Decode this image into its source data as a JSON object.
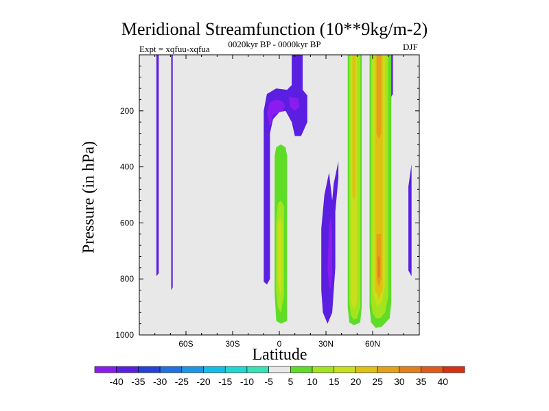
{
  "chart_data": {
    "type": "contour",
    "title": "Meridional Streamfunction (10**9kg/m-2)",
    "subtitle_left": "Expt = xqfuu-xqfua",
    "subtitle_center": "0020kyr BP - 0000kyr BP",
    "subtitle_right": "DJF",
    "xlabel": "Latitude",
    "ylabel": "Pressure (in hPa)",
    "xlim": [
      -90,
      90
    ],
    "ylim": [
      1000,
      0
    ],
    "x_ticks": [
      {
        "value": -60,
        "label": "60S"
      },
      {
        "value": -30,
        "label": "30S"
      },
      {
        "value": 0,
        "label": "0"
      },
      {
        "value": 30,
        "label": "30N"
      },
      {
        "value": 60,
        "label": "60N"
      }
    ],
    "y_ticks": [
      {
        "value": 200,
        "label": "200"
      },
      {
        "value": 400,
        "label": "400"
      },
      {
        "value": 600,
        "label": "600"
      },
      {
        "value": 800,
        "label": "800"
      },
      {
        "value": 1000,
        "label": "1000"
      }
    ],
    "background_color": "#e8e8e8",
    "colorbar": {
      "levels": [
        -40,
        -35,
        -30,
        -25,
        -20,
        -15,
        -10,
        -5,
        5,
        10,
        15,
        20,
        25,
        30,
        35,
        40
      ],
      "colors": [
        "#8b1cf0",
        "#5a1fe0",
        "#2740d8",
        "#1f70e0",
        "#1d96e6",
        "#12bde6",
        "#1ed8d2",
        "#37e3b4",
        "#e8e8e8",
        "#5fdc28",
        "#a2e51e",
        "#c8df1c",
        "#dfc114",
        "#e3a018",
        "#e27f1c",
        "#e05a1a",
        "#d63012"
      ]
    },
    "regions": [
      {
        "bin": -7,
        "points": [
          [
            -79,
            0
          ],
          [
            -77.5,
            0
          ],
          [
            -77.5,
            780
          ],
          [
            -79,
            790
          ]
        ]
      },
      {
        "bin": -7,
        "points": [
          [
            -69.5,
            0
          ],
          [
            -68.5,
            0
          ],
          [
            -68.5,
            830
          ],
          [
            -69.5,
            840
          ]
        ]
      },
      {
        "bin": -7,
        "points": [
          [
            -10,
            320
          ],
          [
            -10,
            200
          ],
          [
            -8,
            140
          ],
          [
            -2,
            120
          ],
          [
            5,
            125
          ],
          [
            8,
            108
          ],
          [
            8,
            0
          ],
          [
            15,
            0
          ],
          [
            15,
            125
          ],
          [
            18,
            145
          ],
          [
            18,
            240
          ],
          [
            14,
            290
          ],
          [
            10,
            290
          ],
          [
            8,
            240
          ],
          [
            4,
            200
          ],
          [
            0,
            205
          ],
          [
            -4,
            230
          ],
          [
            -6,
            280
          ],
          [
            -6,
            800
          ],
          [
            -8,
            820
          ],
          [
            -10,
            810
          ]
        ]
      },
      {
        "bin": -8,
        "points": [
          [
            -8,
            205
          ],
          [
            -6,
            170
          ],
          [
            -2,
            160
          ],
          [
            2,
            165
          ],
          [
            4,
            185
          ],
          [
            2,
            200
          ],
          [
            -4,
            215
          ],
          [
            -6,
            260
          ]
        ]
      },
      {
        "bin": -8,
        "points": [
          [
            6,
            150
          ],
          [
            12,
            155
          ],
          [
            13,
            185
          ],
          [
            10,
            200
          ],
          [
            7,
            185
          ]
        ]
      },
      {
        "bin": -7,
        "points": [
          [
            27,
            840
          ],
          [
            27,
            620
          ],
          [
            29,
            500
          ],
          [
            32,
            420
          ],
          [
            34,
            520
          ],
          [
            35,
            460
          ],
          [
            38,
            380
          ],
          [
            38,
            440
          ],
          [
            36,
            560
          ],
          [
            36,
            760
          ],
          [
            34,
            920
          ],
          [
            31,
            960
          ],
          [
            28,
            920
          ]
        ]
      },
      {
        "bin": -8,
        "points": [
          [
            31,
            760
          ],
          [
            32,
            610
          ],
          [
            33,
            580
          ],
          [
            34,
            640
          ],
          [
            34,
            780
          ],
          [
            33,
            840
          ],
          [
            32,
            820
          ]
        ]
      },
      {
        "bin": -7,
        "points": [
          [
            83,
            770
          ],
          [
            83,
            470
          ],
          [
            85,
            390
          ],
          [
            85,
            790
          ]
        ]
      },
      {
        "bin": -7,
        "points": [
          [
            71,
            0
          ],
          [
            73,
            0
          ],
          [
            73,
            140
          ],
          [
            72,
            150
          ],
          [
            71,
            130
          ]
        ]
      },
      {
        "bin": -7,
        "points": [
          [
            51,
            0
          ],
          [
            53,
            0
          ],
          [
            53,
            40
          ],
          [
            51,
            40
          ]
        ]
      },
      {
        "bin": 1,
        "points": [
          [
            -3,
            850
          ],
          [
            -3,
            360
          ],
          [
            -2,
            330
          ],
          [
            1,
            320
          ],
          [
            4,
            330
          ],
          [
            5,
            360
          ],
          [
            5,
            850
          ],
          [
            5,
            950
          ],
          [
            1,
            960
          ],
          [
            -2,
            950
          ]
        ]
      },
      {
        "bin": 1,
        "points": [
          [
            44,
            0
          ],
          [
            53,
            0
          ],
          [
            53,
            900
          ],
          [
            52,
            955
          ],
          [
            48,
            965
          ],
          [
            45,
            955
          ],
          [
            44,
            900
          ]
        ]
      },
      {
        "bin": 1,
        "points": [
          [
            58,
            0
          ],
          [
            72,
            0
          ],
          [
            72,
            880
          ],
          [
            71,
            940
          ],
          [
            66,
            970
          ],
          [
            62,
            975
          ],
          [
            59,
            955
          ],
          [
            58,
            900
          ]
        ]
      },
      {
        "bin": 2,
        "points": [
          [
            -2,
            840
          ],
          [
            -2,
            600
          ],
          [
            -1,
            530
          ],
          [
            1,
            520
          ],
          [
            3,
            540
          ],
          [
            3,
            600
          ],
          [
            3,
            860
          ],
          [
            1,
            920
          ],
          [
            -1,
            900
          ]
        ]
      },
      {
        "bin": 2,
        "points": [
          [
            45,
            0
          ],
          [
            52,
            0
          ],
          [
            52,
            900
          ],
          [
            50,
            940
          ],
          [
            48,
            945
          ],
          [
            46,
            930
          ],
          [
            45,
            880
          ]
        ]
      },
      {
        "bin": 2,
        "points": [
          [
            59,
            0
          ],
          [
            70,
            0
          ],
          [
            70,
            860
          ],
          [
            68,
            920
          ],
          [
            65,
            940
          ],
          [
            62,
            940
          ],
          [
            60,
            920
          ],
          [
            59,
            880
          ]
        ]
      },
      {
        "bin": 3,
        "points": [
          [
            -1,
            810
          ],
          [
            -1,
            600
          ],
          [
            1,
            580
          ],
          [
            2,
            610
          ],
          [
            2,
            800
          ],
          [
            1,
            860
          ]
        ]
      },
      {
        "bin": 3,
        "points": [
          [
            46,
            0
          ],
          [
            50,
            0
          ],
          [
            50,
            880
          ],
          [
            48,
            910
          ],
          [
            46,
            880
          ]
        ]
      },
      {
        "bin": 3,
        "points": [
          [
            60,
            0
          ],
          [
            68,
            0
          ],
          [
            68,
            820
          ],
          [
            66,
            880
          ],
          [
            63,
            900
          ],
          [
            61,
            870
          ],
          [
            60,
            820
          ]
        ]
      },
      {
        "bin": 4,
        "points": [
          [
            47,
            0
          ],
          [
            49,
            0
          ],
          [
            49,
            500
          ],
          [
            48,
            520
          ],
          [
            47,
            500
          ]
        ]
      },
      {
        "bin": 4,
        "points": [
          [
            61.5,
            0
          ],
          [
            66.5,
            0
          ],
          [
            66.5,
            840
          ],
          [
            64,
            870
          ],
          [
            61.5,
            840
          ]
        ]
      },
      {
        "bin": 5,
        "points": [
          [
            62.5,
            0
          ],
          [
            65.5,
            0
          ],
          [
            65.5,
            280
          ],
          [
            64,
            300
          ],
          [
            62.5,
            280
          ]
        ]
      },
      {
        "bin": 5,
        "points": [
          [
            62.5,
            640
          ],
          [
            65.5,
            640
          ],
          [
            65.5,
            800
          ],
          [
            64,
            830
          ],
          [
            62.5,
            800
          ]
        ]
      },
      {
        "bin": 6,
        "points": [
          [
            63.4,
            720
          ],
          [
            64.6,
            720
          ],
          [
            64.6,
            790
          ],
          [
            64,
            800
          ],
          [
            63.4,
            790
          ]
        ]
      },
      {
        "bin": 4,
        "points": [
          [
            62.5,
            300
          ],
          [
            65.5,
            300
          ],
          [
            65.5,
            640
          ],
          [
            62.5,
            640
          ]
        ]
      }
    ]
  }
}
